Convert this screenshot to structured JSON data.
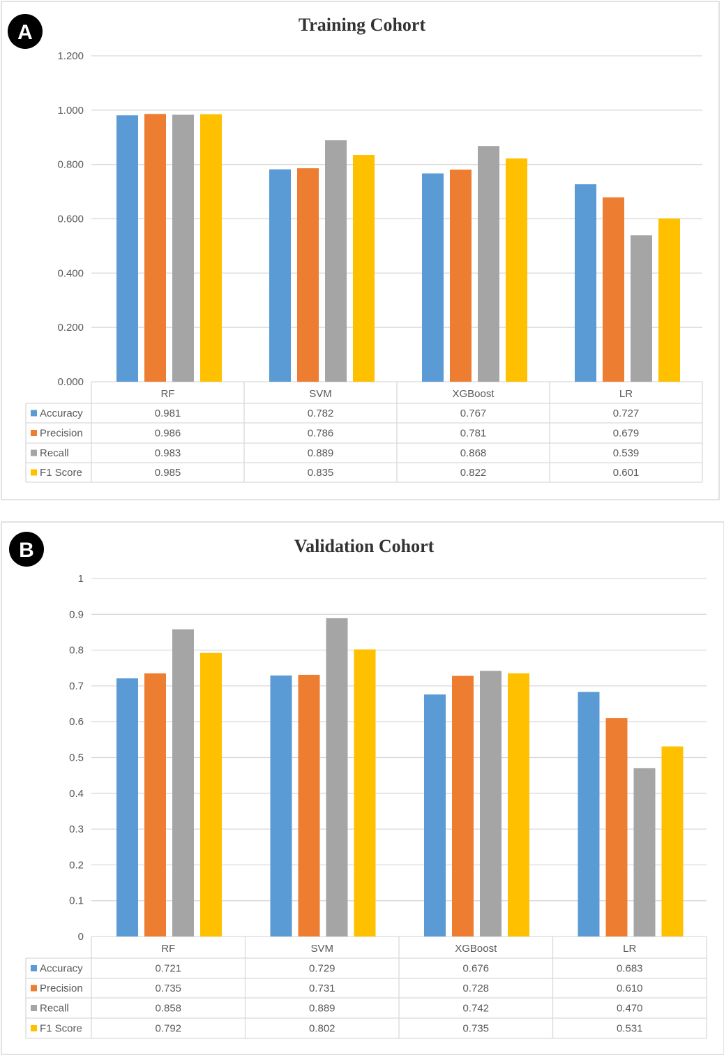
{
  "chart_data": [
    {
      "type": "bar",
      "panel_label": "A",
      "title": "Training Cohort",
      "categories": [
        "RF",
        "SVM",
        "XGBoost",
        "LR"
      ],
      "y_ticks": [
        "0.000",
        "0.200",
        "0.400",
        "0.600",
        "0.800",
        "1.000",
        "1.200"
      ],
      "ylim": [
        0,
        1.2
      ],
      "grid": true,
      "legend": "data-table-left",
      "series": [
        {
          "name": "Accuracy",
          "color": "#5B9BD5",
          "values": [
            0.981,
            0.782,
            0.767,
            0.727
          ],
          "labels": [
            "0.981",
            "0.782",
            "0.767",
            "0.727"
          ]
        },
        {
          "name": "Precision",
          "color": "#ED7D31",
          "values": [
            0.986,
            0.786,
            0.781,
            0.679
          ],
          "labels": [
            "0.986",
            "0.786",
            "0.781",
            "0.679"
          ]
        },
        {
          "name": "Recall",
          "color": "#A5A5A5",
          "values": [
            0.983,
            0.889,
            0.868,
            0.539
          ],
          "labels": [
            "0.983",
            "0.889",
            "0.868",
            "0.539"
          ]
        },
        {
          "name": "F1 Score",
          "color": "#FFC000",
          "values": [
            0.985,
            0.835,
            0.822,
            0.601
          ],
          "labels": [
            "0.985",
            "0.835",
            "0.822",
            "0.601"
          ]
        }
      ]
    },
    {
      "type": "bar",
      "panel_label": "B",
      "title": "Validation Cohort",
      "categories": [
        "RF",
        "SVM",
        "XGBoost",
        "LR"
      ],
      "y_ticks": [
        "0",
        "0.1",
        "0.2",
        "0.3",
        "0.4",
        "0.5",
        "0.6",
        "0.7",
        "0.8",
        "0.9",
        "1"
      ],
      "ylim": [
        0,
        1
      ],
      "grid": true,
      "legend": "data-table-left",
      "series": [
        {
          "name": "Accuracy",
          "color": "#5B9BD5",
          "values": [
            0.721,
            0.729,
            0.676,
            0.683
          ],
          "labels": [
            "0.721",
            "0.729",
            "0.676",
            "0.683"
          ]
        },
        {
          "name": "Precision",
          "color": "#ED7D31",
          "values": [
            0.735,
            0.731,
            0.728,
            0.61
          ],
          "labels": [
            "0.735",
            "0.731",
            "0.728",
            "0.610"
          ]
        },
        {
          "name": "Recall",
          "color": "#A5A5A5",
          "values": [
            0.858,
            0.889,
            0.742,
            0.47
          ],
          "labels": [
            "0.858",
            "0.889",
            "0.742",
            "0.470"
          ]
        },
        {
          "name": "F1 Score",
          "color": "#FFC000",
          "values": [
            0.792,
            0.802,
            0.735,
            0.531
          ],
          "labels": [
            "0.792",
            "0.802",
            "0.735",
            "0.531"
          ]
        }
      ]
    }
  ]
}
